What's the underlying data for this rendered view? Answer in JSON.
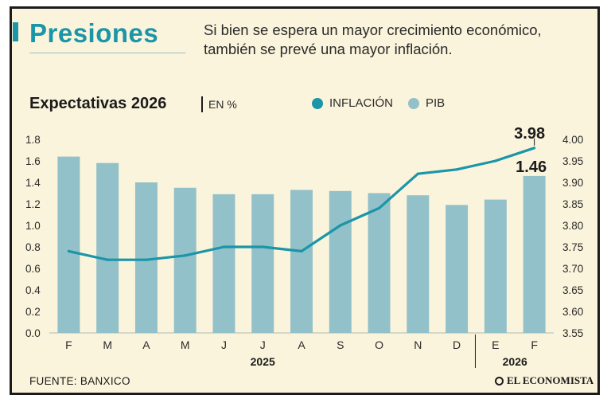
{
  "header": {
    "title": "Presiones",
    "subtitle_line1": "Si bien se espera un mayor crecimiento económico,",
    "subtitle_line2": "también se prevé una mayor inflación."
  },
  "legend": {
    "inflacion": "INFLACIÓN",
    "pib": "PIB"
  },
  "footer": {
    "source": "FUENTE: BANXICO",
    "brand": "EL ECONOMISTA"
  },
  "colors": {
    "accent": "#1b95a8",
    "bar": "#93c1c9",
    "line": "#1b95a8"
  },
  "chart_data": {
    "type": "bar",
    "title": "Expectativas 2026",
    "unit": "EN %",
    "categories": [
      "F",
      "M",
      "A",
      "M",
      "J",
      "J",
      "A",
      "S",
      "O",
      "N",
      "D",
      "E",
      "F"
    ],
    "groups": [
      {
        "label": "2025",
        "from": 0,
        "to": 10
      },
      {
        "label": "2026",
        "from": 11,
        "to": 12
      }
    ],
    "series": [
      {
        "name": "PIB",
        "type": "bar",
        "axis": "left",
        "values": [
          1.64,
          1.58,
          1.4,
          1.35,
          1.29,
          1.29,
          1.33,
          1.32,
          1.3,
          1.28,
          1.19,
          1.24,
          1.46
        ]
      },
      {
        "name": "INFLACIÓN",
        "type": "line",
        "axis": "right",
        "values": [
          3.74,
          3.72,
          3.72,
          3.73,
          3.75,
          3.75,
          3.74,
          3.8,
          3.84,
          3.92,
          3.93,
          3.95,
          3.98
        ]
      }
    ],
    "y_left": {
      "min": 0,
      "max": 1.8,
      "ticks": [
        "0.0",
        "0.2",
        "0.4",
        "0.6",
        "0.8",
        "1.0",
        "1.2",
        "1.4",
        "1.6",
        "1.8"
      ]
    },
    "y_right": {
      "min": 3.55,
      "max": 4.0,
      "ticks": [
        "3.55",
        "3.60",
        "3.65",
        "3.70",
        "3.75",
        "3.80",
        "3.85",
        "3.90",
        "3.95",
        "4.00"
      ]
    },
    "annotations": {
      "last_inflacion": "3.98",
      "last_pib": "1.46"
    }
  }
}
